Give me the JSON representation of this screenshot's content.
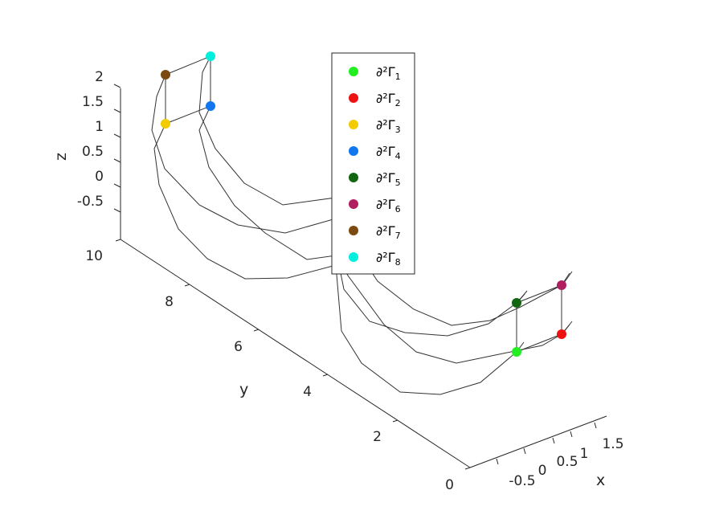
{
  "chart_data": {
    "type": "line3d",
    "xlabel": "x",
    "ylabel": "y",
    "zlabel": "z",
    "x_ticks": [
      "-0.5",
      "0",
      "0.5",
      "1",
      "1.5"
    ],
    "y_ticks": [
      "0",
      "2",
      "4",
      "6",
      "8",
      "10"
    ],
    "z_ticks": [
      "-0.5",
      "0",
      "0.5",
      "1",
      "1.5",
      "2"
    ],
    "grid": false,
    "legend_position": "top-center",
    "line_color": "#333333",
    "legend": [
      {
        "label": "∂²Γ",
        "sub": "1",
        "color": "#22ee22"
      },
      {
        "label": "∂²Γ",
        "sub": "2",
        "color": "#ee1111"
      },
      {
        "label": "∂²Γ",
        "sub": "3",
        "color": "#f2cc00"
      },
      {
        "label": "∂²Γ",
        "sub": "4",
        "color": "#1177ee"
      },
      {
        "label": "∂²Γ",
        "sub": "5",
        "color": "#126612"
      },
      {
        "label": "∂²Γ",
        "sub": "6",
        "color": "#b01e60"
      },
      {
        "label": "∂²Γ",
        "sub": "7",
        "color": "#7a4a10"
      },
      {
        "label": "∂²Γ",
        "sub": "8",
        "color": "#00f0dd"
      }
    ]
  }
}
